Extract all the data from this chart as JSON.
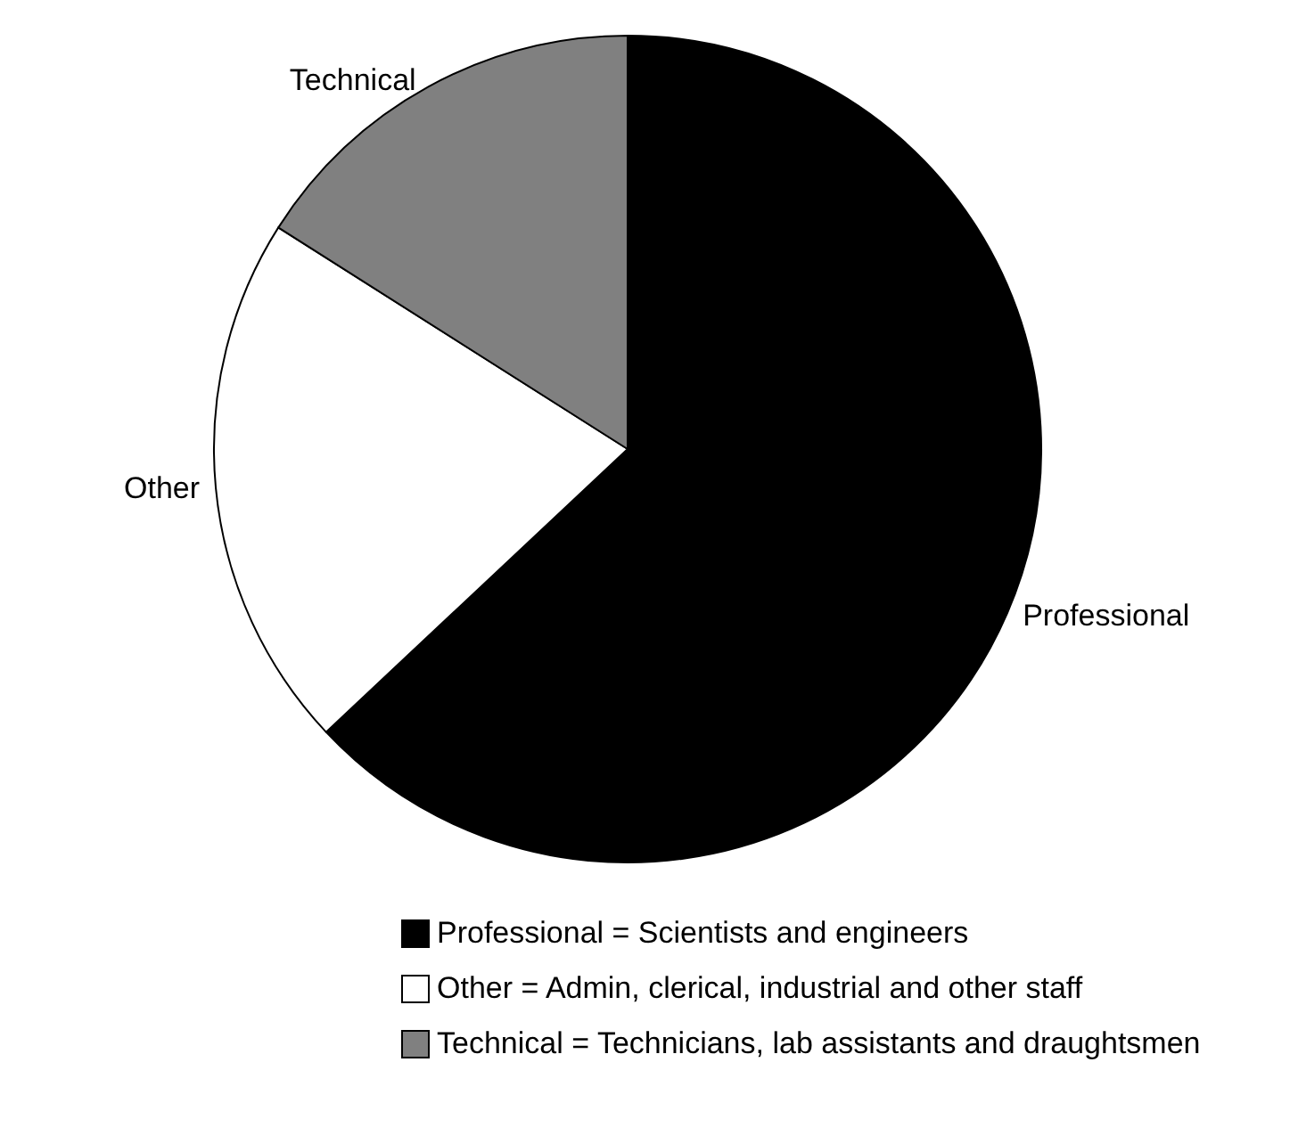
{
  "chart_data": {
    "type": "pie",
    "categories": [
      "Professional",
      "Other",
      "Technical"
    ],
    "values": [
      63,
      21,
      16
    ],
    "colors": [
      "#000000",
      "#ffffff",
      "#808080"
    ],
    "annotations": [
      "Professional = Scientists and engineers",
      "Other = Admin, clerical, industrial and other staff",
      "Technical = Technicians, lab assistants and draughtsmen"
    ]
  }
}
